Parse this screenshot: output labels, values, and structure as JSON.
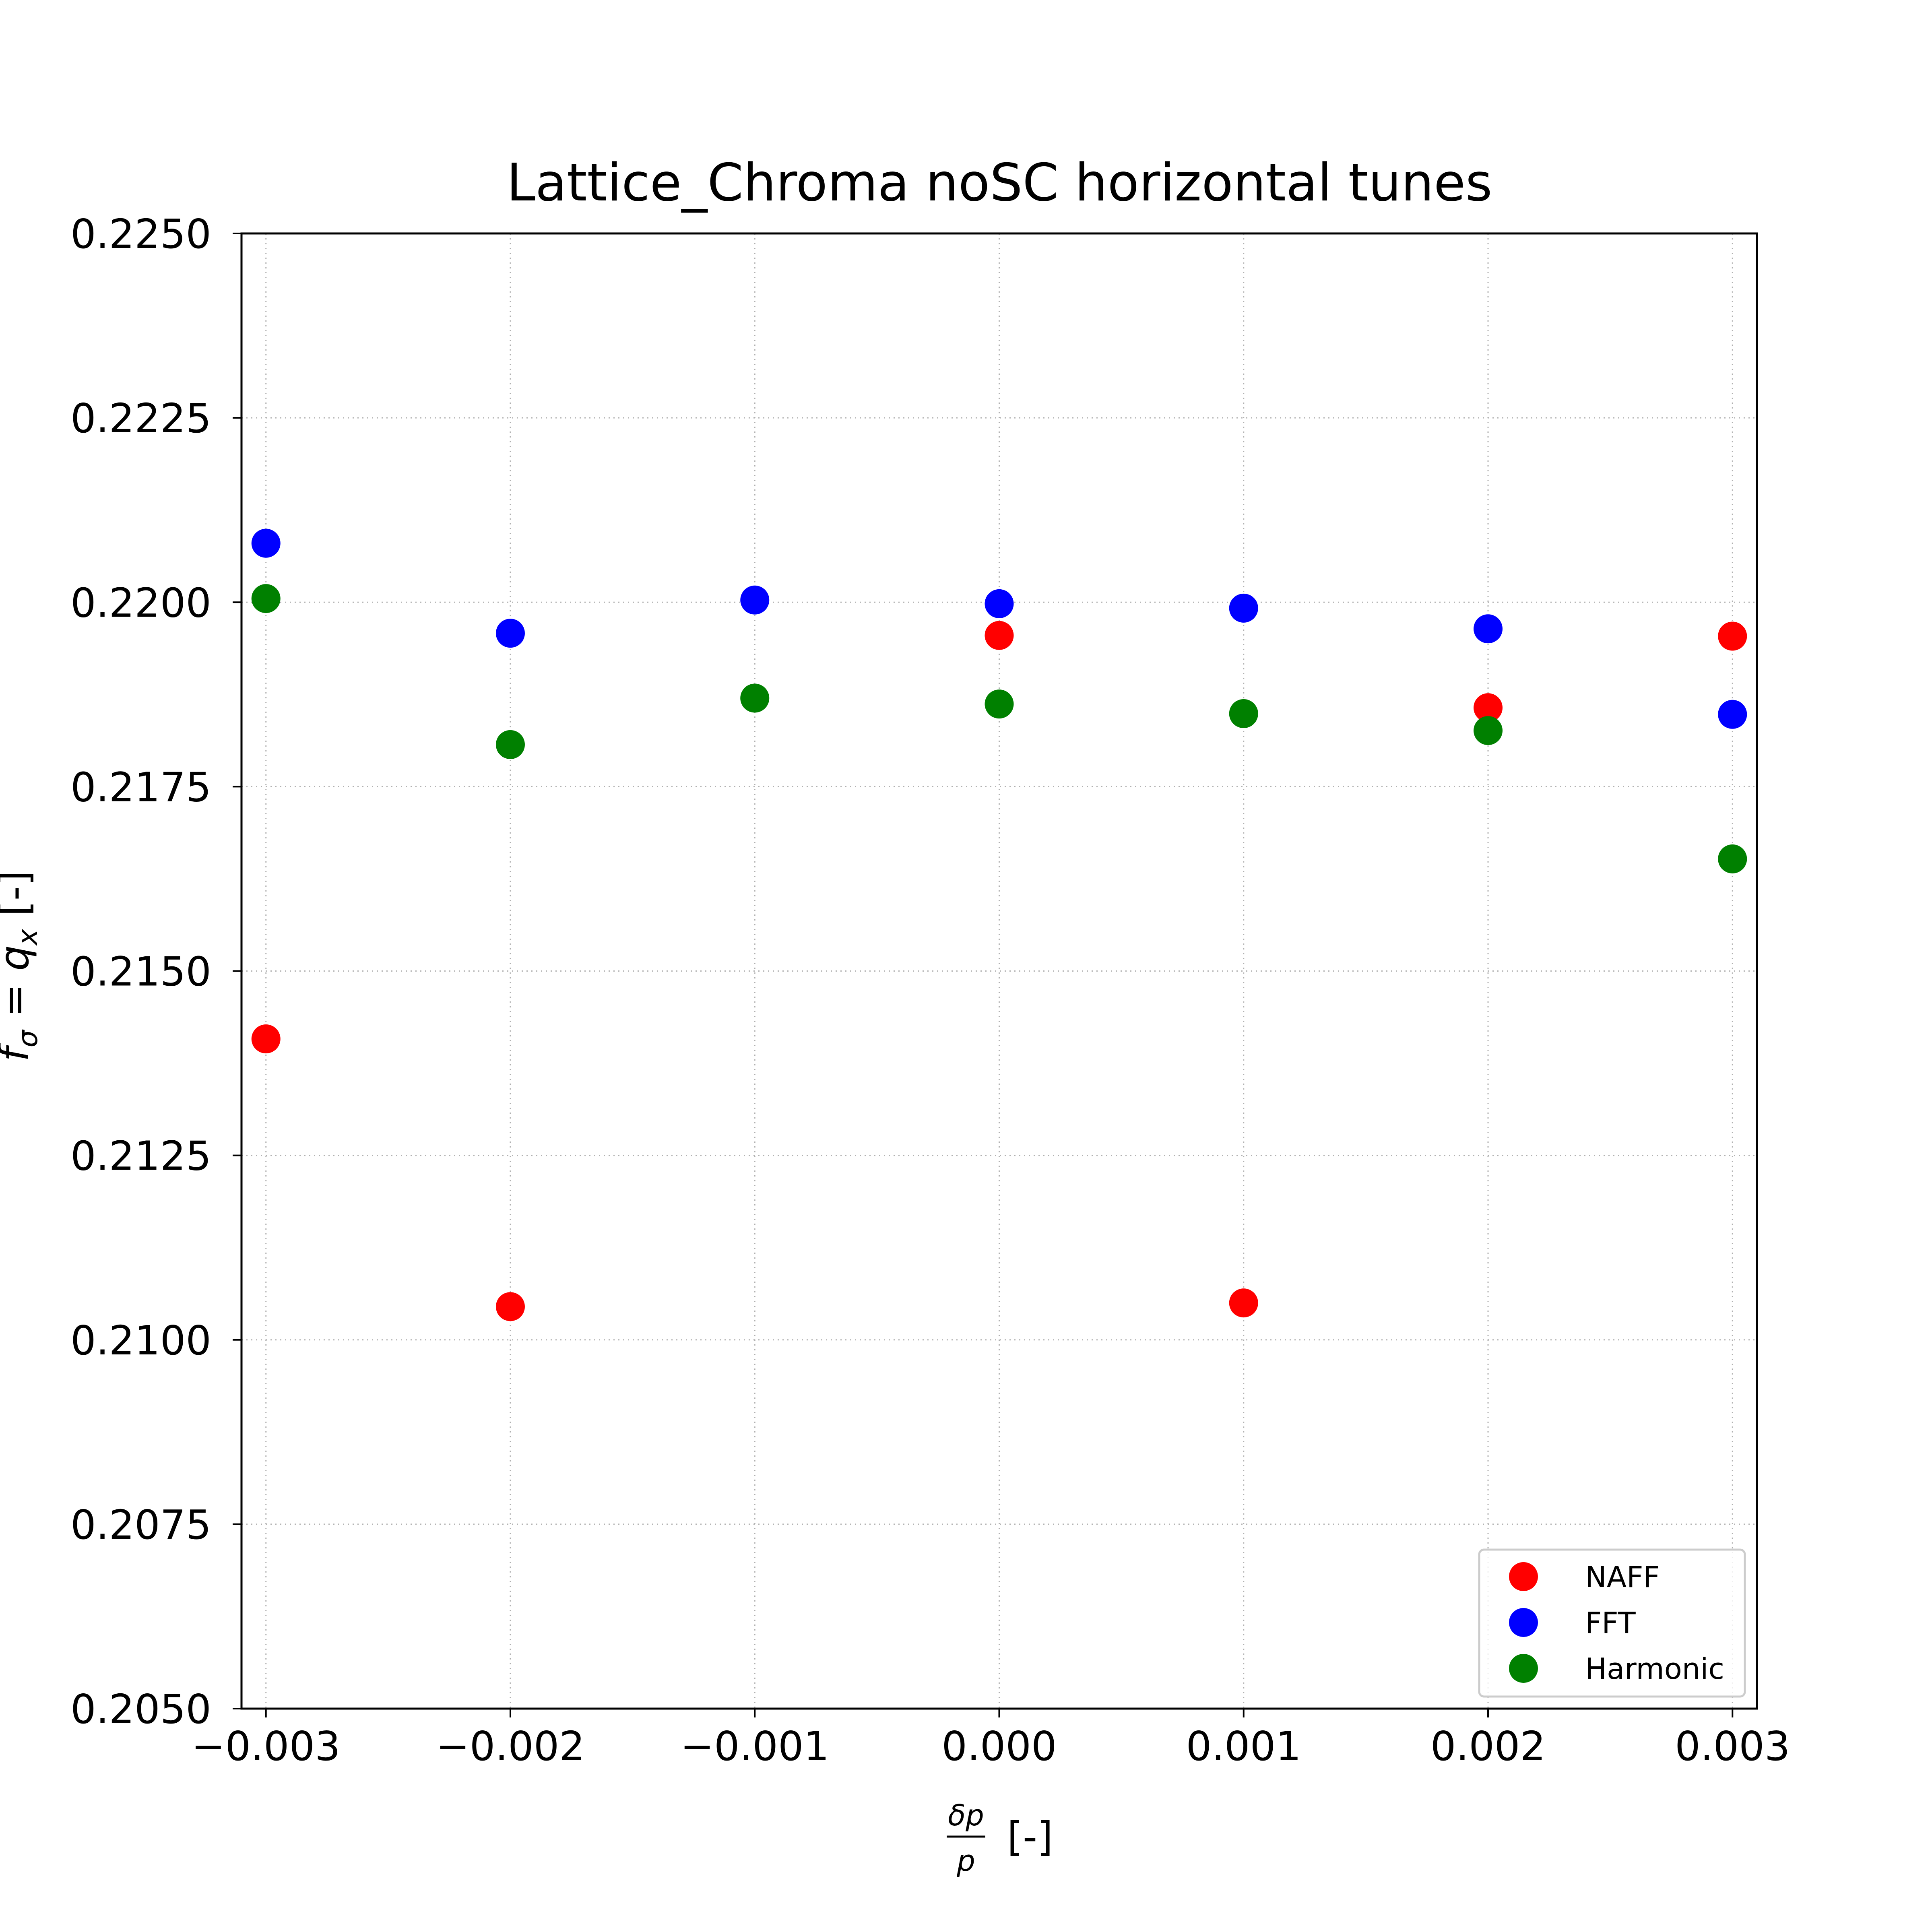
{
  "chart_data": {
    "type": "scatter",
    "title": "Lattice_Chroma noSC horizontal tunes",
    "xlabel": {
      "frac_num": "δp",
      "frac_den": "p",
      "suffix": "[-]"
    },
    "ylabel": {
      "main": "f",
      "main_sub": "σ",
      "eq": " = ",
      "var": "q",
      "var_sub": "x",
      "suffix": " [-]"
    },
    "xlim": [
      -0.0031,
      0.0031
    ],
    "ylim": [
      0.205,
      0.225
    ],
    "x_ticks": [
      -0.003,
      -0.002,
      -0.001,
      0.0,
      0.001,
      0.002,
      0.003
    ],
    "x_tick_labels": [
      "−0.003",
      "−0.002",
      "−0.001",
      "0.000",
      "0.001",
      "0.002",
      "0.003"
    ],
    "y_ticks": [
      0.205,
      0.2075,
      0.21,
      0.2125,
      0.215,
      0.2175,
      0.22,
      0.2225,
      0.225
    ],
    "y_tick_labels": [
      "0.2050",
      "0.2075",
      "0.2100",
      "0.2125",
      "0.2150",
      "0.2175",
      "0.2200",
      "0.2225",
      "0.2250"
    ],
    "grid": true,
    "legend_position": "bottom-right",
    "x": [
      -0.003,
      -0.002,
      -0.001,
      0.0,
      0.001,
      0.002,
      0.003
    ],
    "series": [
      {
        "name": "NAFF",
        "color": "#ff0000",
        "x": [
          -0.003,
          -0.002,
          0.0,
          0.001,
          0.002,
          0.003
        ],
        "values": [
          0.21408,
          0.21045,
          0.21955,
          0.2105,
          0.21857,
          0.21954
        ]
      },
      {
        "name": "FFT",
        "color": "#0000ff",
        "x": [
          -0.003,
          -0.002,
          -0.001,
          0.0,
          0.001,
          0.002,
          0.003
        ],
        "values": [
          0.2208,
          0.21958,
          0.22003,
          0.21998,
          0.21992,
          0.21964,
          0.21848
        ]
      },
      {
        "name": "Harmonic",
        "color": "#008000",
        "x": [
          -0.003,
          -0.002,
          -0.001,
          0.0,
          0.001,
          0.002,
          0.003
        ],
        "values": [
          0.22005,
          0.21807,
          0.2187,
          0.21862,
          0.21849,
          0.21826,
          0.21652
        ]
      }
    ]
  }
}
